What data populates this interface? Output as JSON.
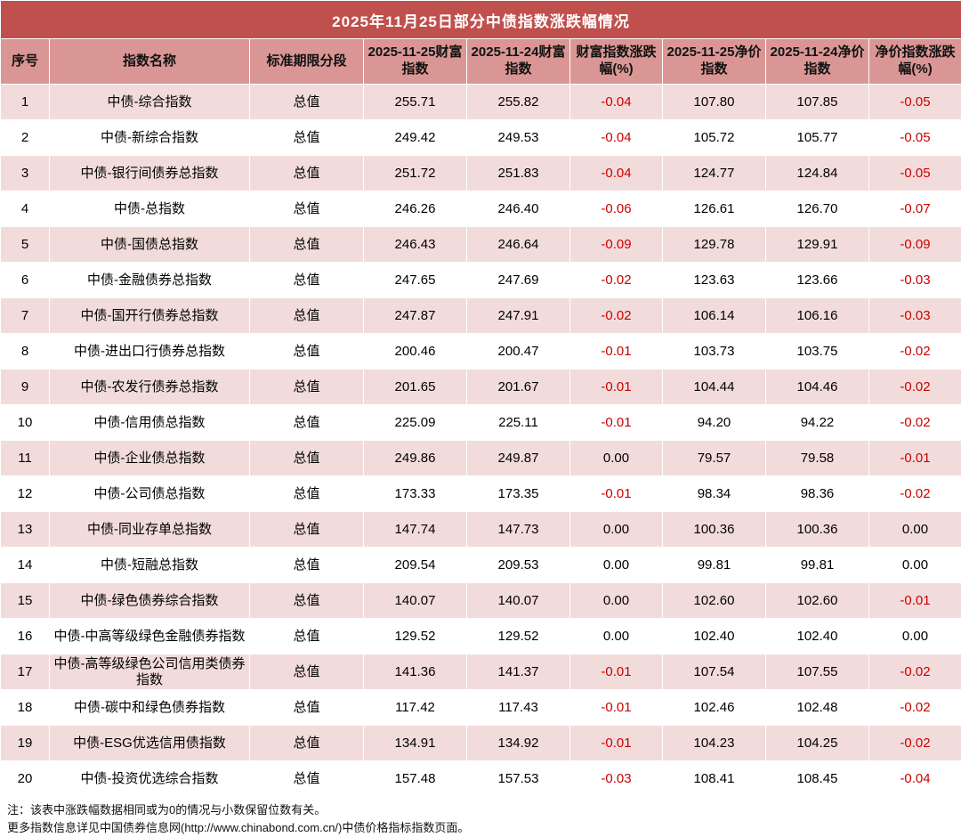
{
  "title": "2025年11月25日部分中债指数涨跌幅情况",
  "colors": {
    "title_bg": "#C0504D",
    "header_bg": "#D99694",
    "row_alt_bg": "#F2DCDB",
    "negative_text": "#CC0000"
  },
  "notes": [
    "注：该表中涨跌幅数据相同或为0的情况与小数保留位数有关。",
    "更多指数信息详见中国债券信息网(http://www.chinabond.com.cn/)中债价格指标指数页面。"
  ],
  "chart_data": {
    "type": "table",
    "title": "2025年11月25日部分中债指数涨跌幅情况",
    "columns": [
      "序号",
      "指数名称",
      "标准期限分段",
      "2025-11-25财富指数",
      "2025-11-24财富指数",
      "财富指数涨跌幅(%)",
      "2025-11-25净价指数",
      "2025-11-24净价指数",
      "净价指数涨跌幅(%)"
    ],
    "rows": [
      [
        "1",
        "中债-综合指数",
        "总值",
        "255.71",
        "255.82",
        "-0.04",
        "107.80",
        "107.85",
        "-0.05"
      ],
      [
        "2",
        "中债-新综合指数",
        "总值",
        "249.42",
        "249.53",
        "-0.04",
        "105.72",
        "105.77",
        "-0.05"
      ],
      [
        "3",
        "中债-银行间债券总指数",
        "总值",
        "251.72",
        "251.83",
        "-0.04",
        "124.77",
        "124.84",
        "-0.05"
      ],
      [
        "4",
        "中债-总指数",
        "总值",
        "246.26",
        "246.40",
        "-0.06",
        "126.61",
        "126.70",
        "-0.07"
      ],
      [
        "5",
        "中债-国债总指数",
        "总值",
        "246.43",
        "246.64",
        "-0.09",
        "129.78",
        "129.91",
        "-0.09"
      ],
      [
        "6",
        "中债-金融债券总指数",
        "总值",
        "247.65",
        "247.69",
        "-0.02",
        "123.63",
        "123.66",
        "-0.03"
      ],
      [
        "7",
        "中债-国开行债券总指数",
        "总值",
        "247.87",
        "247.91",
        "-0.02",
        "106.14",
        "106.16",
        "-0.03"
      ],
      [
        "8",
        "中债-进出口行债券总指数",
        "总值",
        "200.46",
        "200.47",
        "-0.01",
        "103.73",
        "103.75",
        "-0.02"
      ],
      [
        "9",
        "中债-农发行债券总指数",
        "总值",
        "201.65",
        "201.67",
        "-0.01",
        "104.44",
        "104.46",
        "-0.02"
      ],
      [
        "10",
        "中债-信用债总指数",
        "总值",
        "225.09",
        "225.11",
        "-0.01",
        "94.20",
        "94.22",
        "-0.02"
      ],
      [
        "11",
        "中债-企业债总指数",
        "总值",
        "249.86",
        "249.87",
        "0.00",
        "79.57",
        "79.58",
        "-0.01"
      ],
      [
        "12",
        "中债-公司债总指数",
        "总值",
        "173.33",
        "173.35",
        "-0.01",
        "98.34",
        "98.36",
        "-0.02"
      ],
      [
        "13",
        "中债-同业存单总指数",
        "总值",
        "147.74",
        "147.73",
        "0.00",
        "100.36",
        "100.36",
        "0.00"
      ],
      [
        "14",
        "中债-短融总指数",
        "总值",
        "209.54",
        "209.53",
        "0.00",
        "99.81",
        "99.81",
        "0.00"
      ],
      [
        "15",
        "中债-绿色债券综合指数",
        "总值",
        "140.07",
        "140.07",
        "0.00",
        "102.60",
        "102.60",
        "-0.01"
      ],
      [
        "16",
        "中债-中高等级绿色金融债券指数",
        "总值",
        "129.52",
        "129.52",
        "0.00",
        "102.40",
        "102.40",
        "0.00"
      ],
      [
        "17",
        "中债-高等级绿色公司信用类债券指数",
        "总值",
        "141.36",
        "141.37",
        "-0.01",
        "107.54",
        "107.55",
        "-0.02"
      ],
      [
        "18",
        "中债-碳中和绿色债券指数",
        "总值",
        "117.42",
        "117.43",
        "-0.01",
        "102.46",
        "102.48",
        "-0.02"
      ],
      [
        "19",
        "中债-ESG优选信用债指数",
        "总值",
        "134.91",
        "134.92",
        "-0.01",
        "104.23",
        "104.25",
        "-0.02"
      ],
      [
        "20",
        "中债-投资优选综合指数",
        "总值",
        "157.48",
        "157.53",
        "-0.03",
        "108.41",
        "108.45",
        "-0.04"
      ]
    ]
  }
}
